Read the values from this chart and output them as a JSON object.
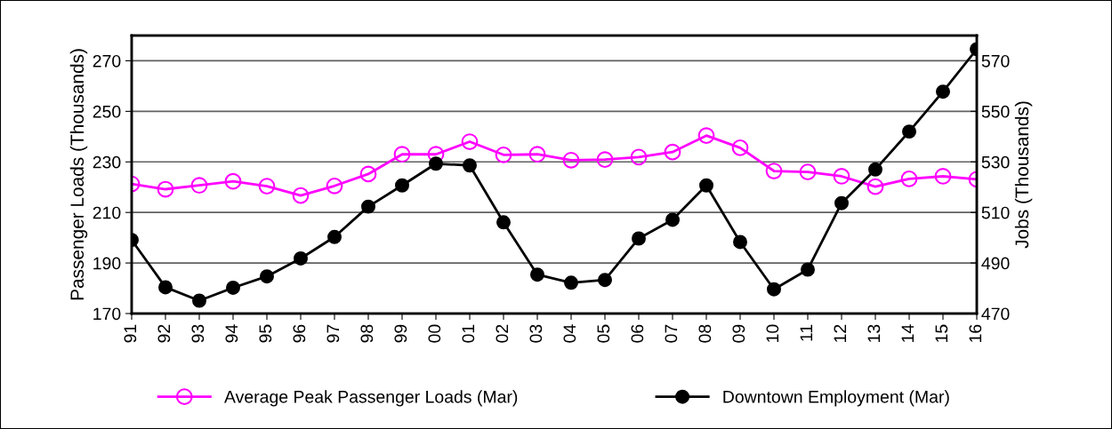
{
  "chart_data": {
    "type": "line",
    "categories": [
      "91",
      "92",
      "93",
      "94",
      "95",
      "96",
      "97",
      "98",
      "99",
      "00",
      "01",
      "02",
      "03",
      "04",
      "05",
      "06",
      "07",
      "08",
      "09",
      "10",
      "11",
      "12",
      "13",
      "14",
      "15",
      "16"
    ],
    "ylabel": "Passenger Loads (Thousands)",
    "y2label": "Jobs (Thousands)",
    "ylim": [
      170,
      280
    ],
    "yticks": [
      170,
      190,
      210,
      230,
      250,
      270
    ],
    "y2lim": [
      470,
      580
    ],
    "y2ticks": [
      470,
      490,
      510,
      530,
      550,
      570
    ],
    "grid": "y",
    "legend": "bottom",
    "series": [
      {
        "name": "Average Peak Passenger Loads (Mar)",
        "color": "#ff00ff",
        "marker": "circle",
        "values": [
          221.3,
          219.2,
          220.7,
          222.3,
          220.4,
          216.7,
          220.5,
          225.2,
          233.0,
          233.0,
          238.0,
          232.8,
          233.0,
          230.7,
          230.9,
          231.9,
          233.9,
          240.4,
          235.6,
          226.4,
          226.0,
          224.3,
          220.2,
          223.3,
          224.3,
          223.1
        ]
      },
      {
        "name": "Downtown Employment (Mar)",
        "color": "#000000",
        "marker": "circle",
        "axis": "y2",
        "values": [
          499.1,
          480.4,
          475.1,
          480.2,
          484.7,
          491.8,
          500.3,
          512.3,
          520.7,
          529.3,
          528.6,
          506.1,
          485.4,
          482.2,
          483.3,
          499.7,
          507.1,
          520.7,
          498.3,
          479.6,
          487.4,
          513.7,
          527.0,
          542.0,
          557.8,
          574.6
        ]
      }
    ]
  }
}
